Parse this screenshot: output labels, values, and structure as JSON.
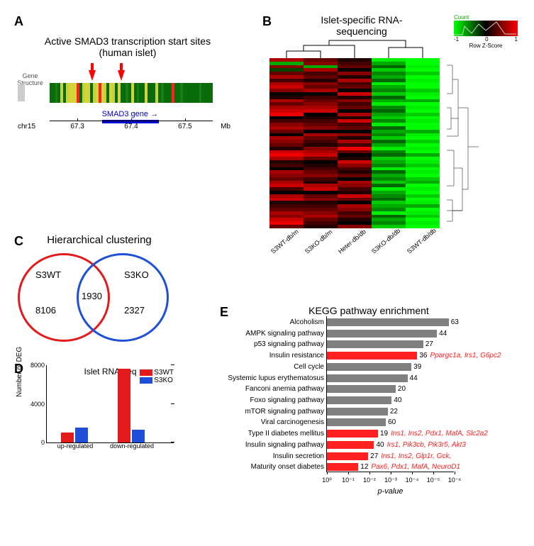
{
  "panelA": {
    "label": "A",
    "title_l1": "Active SMAD3 transcription start sites",
    "title_l2": "(human islet)",
    "geneStructureLabel": "Gene Structure",
    "gene_bar_label": "SMAD3 gene →",
    "gene_bar": {
      "left_pct": 32,
      "width_pct": 35,
      "color": "#0000cc"
    },
    "arrows_pct": [
      26,
      44
    ],
    "chr_label": "chr15",
    "mb_label": "Mb",
    "ticks": [
      {
        "pos_pct": 17,
        "label": "67.3"
      },
      {
        "pos_pct": 50,
        "label": "67.4"
      },
      {
        "pos_pct": 83,
        "label": "67.5"
      }
    ],
    "track_colors": [
      "#0a6b0a",
      "#0a6b0a",
      "#157f15",
      "#0a6b0a",
      "#c5d23a",
      "#0a6b0a",
      "#c5d23a",
      "#d6d23a",
      "#d6d23a",
      "#d6d23a",
      "#ff2020",
      "#0a6b0a",
      "#c5d23a",
      "#d6d23a",
      "#d6d23a",
      "#0a6b0a",
      "#c5d23a",
      "#d6d23a",
      "#ff2020",
      "#d6d23a",
      "#c5d23a",
      "#0a6b0a",
      "#d6d23a",
      "#c5d23a",
      "#0a6b0a",
      "#d6d23a",
      "#0a6b0a",
      "#0a6b0a",
      "#157f15",
      "#0a6b0a",
      "#d6d23a",
      "#0a6b0a",
      "#157f15",
      "#0a6b0a",
      "#0a6b0a",
      "#d6d23a",
      "#0a6b0a",
      "#0a6b0a",
      "#0a6b0a",
      "#c5d23a",
      "#0a6b0a",
      "#157f15",
      "#0a6b0a",
      "#0a6b0a",
      "#0a6b0a",
      "#ff2020",
      "#0a6b0a",
      "#0a6b0a",
      "#157f15",
      "#0a6b0a",
      "#0a6b0a",
      "#0a6b0a",
      "#0a6b0a",
      "#0a6b0a",
      "#0a6b0a",
      "#157f15",
      "#0a6b0a",
      "#0a6b0a",
      "#0a6b0a",
      "#0a6b0a"
    ]
  },
  "panelB": {
    "label": "B",
    "title_l1": "Islet-specific RNA-",
    "title_l2": "sequencing",
    "legend_title": "Count",
    "legend_sub": "Row Z-Score",
    "legend_ticks": [
      "-1",
      "0",
      "1"
    ],
    "x_labels": [
      "S3WT-db/m",
      "S3KO-db/m",
      "Heter-db/db",
      "S3KO-db/db",
      "S3WT-db/db"
    ],
    "cols": [
      [
        "#a00",
        "#0a0",
        "#800",
        "#040",
        "#600",
        "#a00",
        "#400",
        "#a00",
        "#c00",
        "#800",
        "#000",
        "#200",
        "#a00",
        "#600",
        "#a00",
        "#c00",
        "#e00",
        "#000",
        "#400",
        "#800",
        "#a00",
        "#600",
        "#000",
        "#a00",
        "#800",
        "#600",
        "#200",
        "#c00",
        "#e00",
        "#a00",
        "#200",
        "#400",
        "#000",
        "#a00",
        "#800",
        "#600",
        "#a00",
        "#c00",
        "#400",
        "#000",
        "#a00",
        "#c00",
        "#200",
        "#400",
        "#600",
        "#a00",
        "#800",
        "#c00",
        "#e00",
        "#600"
      ],
      [
        "#600",
        "#800",
        "#0a0",
        "#a00",
        "#400",
        "#600",
        "#200",
        "#800",
        "#600",
        "#a00",
        "#000",
        "#400",
        "#600",
        "#800",
        "#a00",
        "#c00",
        "#000",
        "#200",
        "#400",
        "#600",
        "#800",
        "#000",
        "#a00",
        "#600",
        "#400",
        "#200",
        "#800",
        "#a00",
        "#c00",
        "#600",
        "#000",
        "#200",
        "#400",
        "#600",
        "#800",
        "#400",
        "#200",
        "#a00",
        "#c00",
        "#000",
        "#600",
        "#800",
        "#200",
        "#400",
        "#600",
        "#800",
        "#a00",
        "#600",
        "#400",
        "#200"
      ],
      [
        "#200",
        "#400",
        "#600",
        "#000",
        "#800",
        "#200",
        "#a00",
        "#400",
        "#600",
        "#000",
        "#c00",
        "#200",
        "#800",
        "#400",
        "#600",
        "#000",
        "#a00",
        "#200",
        "#c00",
        "#400",
        "#600",
        "#000",
        "#800",
        "#200",
        "#a00",
        "#400",
        "#e00",
        "#600",
        "#000",
        "#200",
        "#c00",
        "#800",
        "#400",
        "#200",
        "#600",
        "#000",
        "#a00",
        "#800",
        "#400",
        "#200",
        "#c00",
        "#600",
        "#000",
        "#a00",
        "#800",
        "#400",
        "#600",
        "#200",
        "#000",
        "#800"
      ],
      [
        "#0e0",
        "#0a0",
        "#060",
        "#0c0",
        "#080",
        "#0a0",
        "#060",
        "#0e0",
        "#0a0",
        "#080",
        "#0c0",
        "#060",
        "#0a0",
        "#0e0",
        "#080",
        "#060",
        "#0a0",
        "#0c0",
        "#080",
        "#0e0",
        "#060",
        "#0a0",
        "#080",
        "#0c0",
        "#060",
        "#0a0",
        "#0e0",
        "#080",
        "#060",
        "#0c0",
        "#0a0",
        "#080",
        "#0e0",
        "#060",
        "#0a0",
        "#080",
        "#0c0",
        "#060",
        "#0e0",
        "#0a0",
        "#080",
        "#060",
        "#0c0",
        "#0a0",
        "#080",
        "#0e0",
        "#060",
        "#0a0",
        "#080",
        "#0c0"
      ],
      [
        "#0f0",
        "#0f0",
        "#0e0",
        "#0f0",
        "#0c0",
        "#0f0",
        "#0e0",
        "#0f0",
        "#0f0",
        "#0c0",
        "#0e0",
        "#0f0",
        "#0a0",
        "#0f0",
        "#0e0",
        "#0f0",
        "#0c0",
        "#0f0",
        "#0e0",
        "#0f0",
        "#0f0",
        "#0a0",
        "#0e0",
        "#0f0",
        "#0c0",
        "#0f0",
        "#0e0",
        "#0f0",
        "#0a0",
        "#0f0",
        "#0e0",
        "#0c0",
        "#0f0",
        "#0e0",
        "#0f0",
        "#0c0",
        "#0a0",
        "#0f0",
        "#0e0",
        "#0f0",
        "#0c0",
        "#0f0",
        "#0e0",
        "#0a0",
        "#0f0",
        "#0e0",
        "#0c0",
        "#0f0",
        "#0e0",
        "#0f0"
      ]
    ]
  },
  "panelC": {
    "label": "C",
    "title": "Hierarchical clustering",
    "left_label": "S3WT",
    "right_label": "S3KO",
    "left_n": "8106",
    "center_n": "1930",
    "right_n": "2327",
    "left_color": "#e31a1c",
    "right_color": "#1f4fd8"
  },
  "panelD": {
    "label": "D",
    "title": "Islet RNA-seq",
    "ylabel": "Number of DEG",
    "ymax": 8000,
    "yticks": [
      0,
      4000,
      8000
    ],
    "legend": [
      {
        "label": "S3WT",
        "color": "#e31a1c"
      },
      {
        "label": "S3KO",
        "color": "#1f4fd8"
      }
    ],
    "groups": [
      {
        "label": "up-regulated",
        "s3wt": 1000,
        "s3ko": 1500
      },
      {
        "label": "down-regulated",
        "s3wt": 7600,
        "s3ko": 1300
      }
    ]
  },
  "panelE": {
    "label": "E",
    "title": "KEGG pathway enrichment",
    "xlabel": "p-value",
    "xticks": [
      "10⁰",
      "10⁻¹",
      "10⁻²",
      "10⁻³",
      "10⁻⁴",
      "10⁻⁵",
      "10⁻⁶"
    ],
    "bar_gray": "#808080",
    "bar_red": "#ff2020",
    "max_log": 6.5,
    "rows": [
      {
        "cat": "Alcoholism",
        "n": 63,
        "logp": 6.2,
        "hl": false,
        "genes": ""
      },
      {
        "cat": "AMPK signaling pathway",
        "n": 44,
        "logp": 5.6,
        "hl": false,
        "genes": ""
      },
      {
        "cat": "p53 signaling pathway",
        "n": 27,
        "logp": 4.9,
        "hl": false,
        "genes": ""
      },
      {
        "cat": "Insulin resistance",
        "n": 36,
        "logp": 4.6,
        "hl": true,
        "genes": "Ppargc1a, Irs1, G6pc2"
      },
      {
        "cat": "Cell cycle",
        "n": 39,
        "logp": 4.3,
        "hl": false,
        "genes": ""
      },
      {
        "cat": "Systemic lupus erythematosus",
        "n": 44,
        "logp": 4.1,
        "hl": false,
        "genes": ""
      },
      {
        "cat": "Fanconi anemia pathway",
        "n": 20,
        "logp": 3.5,
        "hl": false,
        "genes": ""
      },
      {
        "cat": "Foxo signaling pathway",
        "n": 40,
        "logp": 3.3,
        "hl": false,
        "genes": ""
      },
      {
        "cat": "mTOR signaling pathway",
        "n": 22,
        "logp": 3.1,
        "hl": false,
        "genes": ""
      },
      {
        "cat": "Viral carcinogenesis",
        "n": 60,
        "logp": 3.0,
        "hl": false,
        "genes": ""
      },
      {
        "cat": "Type II diabetes mellitus",
        "n": 19,
        "logp": 2.6,
        "hl": true,
        "genes": "Ins1, Ins2, Pdx1, MafA, Slc2a2"
      },
      {
        "cat": "Insulin signaling pathway",
        "n": 40,
        "logp": 2.4,
        "hl": true,
        "genes": "Irs1, Pik3cb, Pik3r5, Akt3"
      },
      {
        "cat": "Insulin secretion",
        "n": 27,
        "logp": 2.1,
        "hl": true,
        "genes": "Ins1, Ins2, Glp1r, Gck,"
      },
      {
        "cat": "Maturity onset diabetes",
        "n": 12,
        "logp": 1.6,
        "hl": true,
        "genes": "Pax6, Pdx1, MafA, NeuroD1"
      }
    ]
  }
}
